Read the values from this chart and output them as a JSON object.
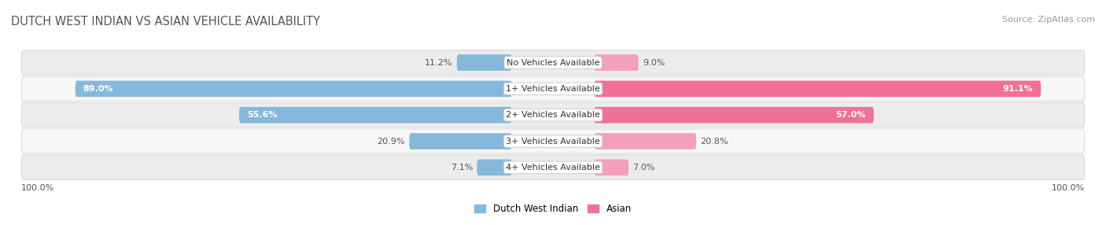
{
  "title": "DUTCH WEST INDIAN VS ASIAN VEHICLE AVAILABILITY",
  "source": "Source: ZipAtlas.com",
  "categories": [
    "No Vehicles Available",
    "1+ Vehicles Available",
    "2+ Vehicles Available",
    "3+ Vehicles Available",
    "4+ Vehicles Available"
  ],
  "dutch_values": [
    11.2,
    89.0,
    55.6,
    20.9,
    7.1
  ],
  "asian_values": [
    9.0,
    91.1,
    57.0,
    20.8,
    7.0
  ],
  "dutch_color": "#85b8db",
  "dutch_color_dark": "#6aa3cb",
  "asian_color": "#f07097",
  "asian_color_light": "#f4a0bc",
  "dutch_label": "Dutch West Indian",
  "asian_label": "Asian",
  "bar_height": 0.62,
  "row_bg_odd": "#f7f7f7",
  "row_bg_even": "#ececec",
  "row_border": "#d0d0d0",
  "max_value": 100.0,
  "axis_label_left": "100.0%",
  "axis_label_right": "100.0%",
  "fig_bg": "#ffffff",
  "title_color": "#555555",
  "label_color": "#555555",
  "title_fontsize": 10.5,
  "source_fontsize": 8,
  "value_fontsize": 8,
  "cat_fontsize": 8
}
